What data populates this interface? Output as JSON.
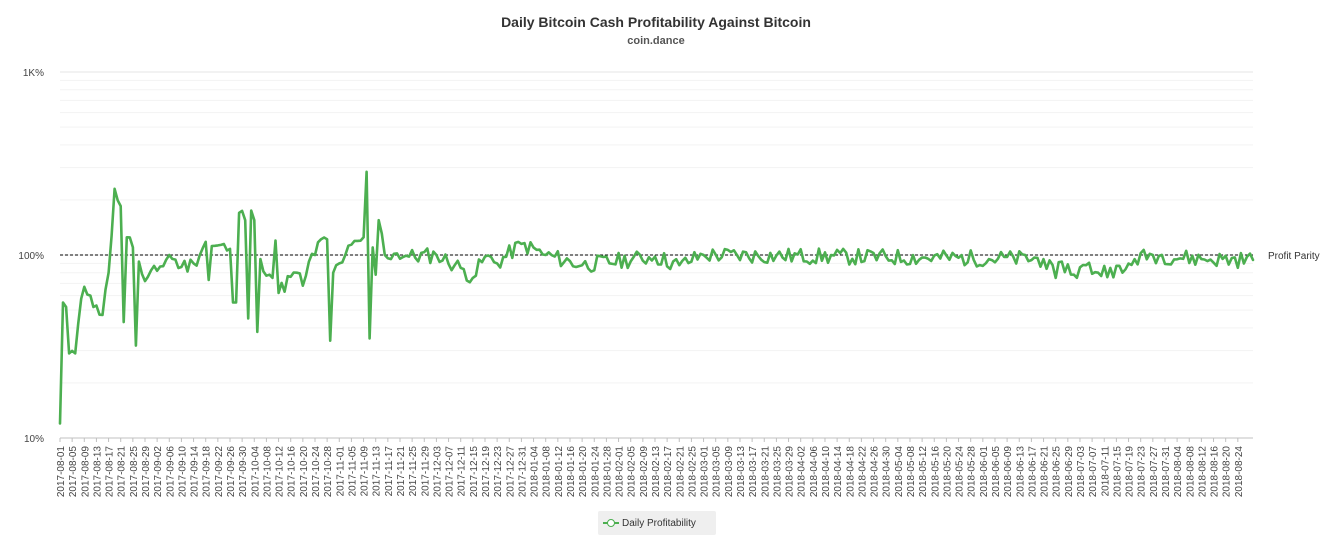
{
  "chart_data": {
    "type": "line",
    "title": "Daily Bitcoin Cash Profitability Against Bitcoin",
    "subtitle": "coin.dance",
    "yscale": "log",
    "ylim": [
      10,
      1000
    ],
    "yticks": [
      {
        "value": 10,
        "label": "10%"
      },
      {
        "value": 100,
        "label": "100%"
      },
      {
        "value": 1000,
        "label": "1K%"
      }
    ],
    "grid": true,
    "reference_line": {
      "value": 100,
      "label": "Profit Parity",
      "style": "dashed"
    },
    "legend_position": "bottom-center",
    "xlim": [
      "2017-08-01",
      "2018-08-29"
    ],
    "x_tick_labels": [
      "2017-08-01",
      "2017-08-05",
      "2017-08-09",
      "2017-08-13",
      "2017-08-17",
      "2017-08-21",
      "2017-08-25",
      "2017-08-29",
      "2017-09-02",
      "2017-09-06",
      "2017-09-10",
      "2017-09-14",
      "2017-09-18",
      "2017-09-22",
      "2017-09-26",
      "2017-09-30",
      "2017-10-04",
      "2017-10-08",
      "2017-10-12",
      "2017-10-16",
      "2017-10-20",
      "2017-10-24",
      "2017-10-28",
      "2017-11-01",
      "2017-11-05",
      "2017-11-09",
      "2017-11-13",
      "2017-11-17",
      "2017-11-21",
      "2017-11-25",
      "2017-11-29",
      "2017-12-03",
      "2017-12-07",
      "2017-12-11",
      "2017-12-15",
      "2017-12-19",
      "2017-12-23",
      "2017-12-27",
      "2017-12-31",
      "2018-01-04",
      "2018-01-08",
      "2018-01-12",
      "2018-01-16",
      "2018-01-20",
      "2018-01-24",
      "2018-01-28",
      "2018-02-01",
      "2018-02-05",
      "2018-02-09",
      "2018-02-13",
      "2018-02-17",
      "2018-02-21",
      "2018-02-25",
      "2018-03-01",
      "2018-03-05",
      "2018-03-09",
      "2018-03-13",
      "2018-03-17",
      "2018-03-21",
      "2018-03-25",
      "2018-03-29",
      "2018-04-02",
      "2018-04-06",
      "2018-04-10",
      "2018-04-14",
      "2018-04-18",
      "2018-04-22",
      "2018-04-26",
      "2018-04-30",
      "2018-05-04",
      "2018-05-08",
      "2018-05-12",
      "2018-05-16",
      "2018-05-20",
      "2018-05-24",
      "2018-05-28",
      "2018-06-01",
      "2018-06-05",
      "2018-06-09",
      "2018-06-13",
      "2018-06-17",
      "2018-06-21",
      "2018-06-25",
      "2018-06-29",
      "2018-07-03",
      "2018-07-07",
      "2018-07-11",
      "2018-07-15",
      "2018-07-19",
      "2018-07-23",
      "2018-07-27",
      "2018-07-31",
      "2018-08-04",
      "2018-08-08",
      "2018-08-12",
      "2018-08-16",
      "2018-08-20",
      "2018-08-24"
    ],
    "series": [
      {
        "name": "Daily Profitability",
        "color": "#4caf50",
        "keypoints": [
          {
            "x": "2017-08-01",
            "y": 12
          },
          {
            "x": "2017-08-02",
            "y": 55
          },
          {
            "x": "2017-08-03",
            "y": 52
          },
          {
            "x": "2017-08-04",
            "y": 29
          },
          {
            "x": "2017-08-06",
            "y": 29
          },
          {
            "x": "2017-08-07",
            "y": 42
          },
          {
            "x": "2017-08-09",
            "y": 67
          },
          {
            "x": "2017-08-11",
            "y": 60
          },
          {
            "x": "2017-08-13",
            "y": 53
          },
          {
            "x": "2017-08-15",
            "y": 47
          },
          {
            "x": "2017-08-17",
            "y": 80
          },
          {
            "x": "2017-08-19",
            "y": 230
          },
          {
            "x": "2017-08-21",
            "y": 185
          },
          {
            "x": "2017-08-22",
            "y": 43
          },
          {
            "x": "2017-08-23",
            "y": 125
          },
          {
            "x": "2017-08-25",
            "y": 110
          },
          {
            "x": "2017-08-26",
            "y": 32
          },
          {
            "x": "2017-08-27",
            "y": 92
          },
          {
            "x": "2017-08-29",
            "y": 72
          },
          {
            "x": "2017-09-02",
            "y": 82
          },
          {
            "x": "2017-09-06",
            "y": 100
          },
          {
            "x": "2017-09-10",
            "y": 86
          },
          {
            "x": "2017-09-14",
            "y": 90
          },
          {
            "x": "2017-09-18",
            "y": 118
          },
          {
            "x": "2017-09-19",
            "y": 73
          },
          {
            "x": "2017-09-20",
            "y": 112
          },
          {
            "x": "2017-09-26",
            "y": 108
          },
          {
            "x": "2017-09-27",
            "y": 55
          },
          {
            "x": "2017-09-28",
            "y": 55
          },
          {
            "x": "2017-09-29",
            "y": 170
          },
          {
            "x": "2017-10-01",
            "y": 155
          },
          {
            "x": "2017-10-02",
            "y": 45
          },
          {
            "x": "2017-10-03",
            "y": 175
          },
          {
            "x": "2017-10-04",
            "y": 155
          },
          {
            "x": "2017-10-05",
            "y": 38
          },
          {
            "x": "2017-10-06",
            "y": 95
          },
          {
            "x": "2017-10-10",
            "y": 75
          },
          {
            "x": "2017-10-11",
            "y": 120
          },
          {
            "x": "2017-10-12",
            "y": 62
          },
          {
            "x": "2017-10-16",
            "y": 76
          },
          {
            "x": "2017-10-18",
            "y": 80
          },
          {
            "x": "2017-10-20",
            "y": 68
          },
          {
            "x": "2017-10-22",
            "y": 92
          },
          {
            "x": "2017-10-24",
            "y": 100
          },
          {
            "x": "2017-10-26",
            "y": 122
          },
          {
            "x": "2017-10-28",
            "y": 122
          },
          {
            "x": "2017-10-29",
            "y": 34
          },
          {
            "x": "2017-10-30",
            "y": 80
          },
          {
            "x": "2017-11-01",
            "y": 90
          },
          {
            "x": "2017-11-03",
            "y": 100
          },
          {
            "x": "2017-11-09",
            "y": 125
          },
          {
            "x": "2017-11-10",
            "y": 285
          },
          {
            "x": "2017-11-11",
            "y": 35
          },
          {
            "x": "2017-11-12",
            "y": 110
          },
          {
            "x": "2017-11-13",
            "y": 78
          },
          {
            "x": "2017-11-14",
            "y": 155
          },
          {
            "x": "2017-11-16",
            "y": 100
          },
          {
            "x": "2017-11-20",
            "y": 102
          },
          {
            "x": "2017-11-24",
            "y": 98
          },
          {
            "x": "2017-12-03",
            "y": 100
          },
          {
            "x": "2017-12-11",
            "y": 85
          },
          {
            "x": "2017-12-15",
            "y": 75
          },
          {
            "x": "2017-12-19",
            "y": 98
          },
          {
            "x": "2017-12-23",
            "y": 90
          },
          {
            "x": "2017-12-31",
            "y": 115
          },
          {
            "x": "2018-01-08",
            "y": 100
          },
          {
            "x": "2018-01-20",
            "y": 88
          },
          {
            "x": "2018-02-13",
            "y": 98
          },
          {
            "x": "2018-02-21",
            "y": 88
          },
          {
            "x": "2018-03-01",
            "y": 100
          },
          {
            "x": "2018-06-21",
            "y": 95
          },
          {
            "x": "2018-06-25",
            "y": 75
          },
          {
            "x": "2018-06-27",
            "y": 92
          },
          {
            "x": "2018-07-01",
            "y": 78
          },
          {
            "x": "2018-07-05",
            "y": 88
          },
          {
            "x": "2018-07-09",
            "y": 80
          },
          {
            "x": "2018-07-13",
            "y": 85
          },
          {
            "x": "2018-07-17",
            "y": 80
          },
          {
            "x": "2018-07-21",
            "y": 95
          },
          {
            "x": "2018-07-27",
            "y": 100
          },
          {
            "x": "2018-08-12",
            "y": 95
          },
          {
            "x": "2018-08-29",
            "y": 94
          }
        ],
        "noise": 0.09
      }
    ]
  },
  "legend": {
    "label": "Daily Profitability"
  }
}
